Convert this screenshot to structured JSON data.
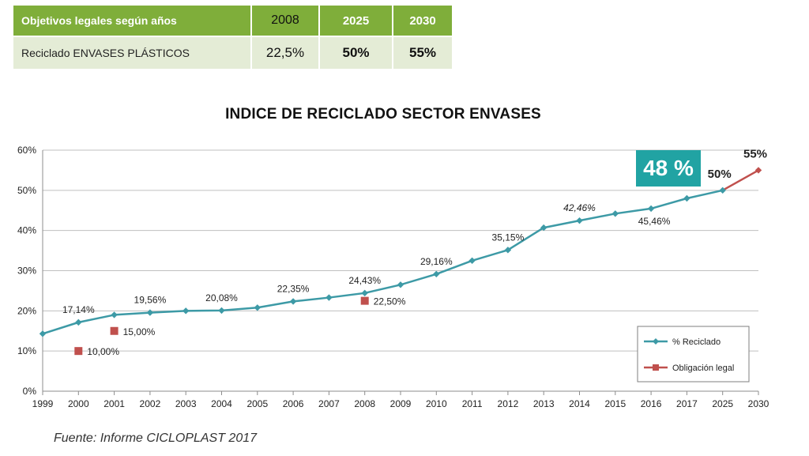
{
  "table": {
    "header_label": "Objetivos legales según años",
    "header_years": [
      "2008",
      "2025",
      "2030"
    ],
    "row_label": "Reciclado ENVASES PLÁSTICOS",
    "row_values": [
      "22,5%",
      "50%",
      "55%"
    ]
  },
  "badge": "48 %",
  "source": "Fuente: Informe CICLOPLAST 2017",
  "chart_data": {
    "type": "line",
    "title": "INDICE DE RECICLADO SECTOR ENVASES",
    "xlabel": "",
    "ylabel": "",
    "categories": [
      "1999",
      "2000",
      "2001",
      "2002",
      "2003",
      "2004",
      "2005",
      "2006",
      "2007",
      "2008",
      "2009",
      "2010",
      "2011",
      "2012",
      "2013",
      "2014",
      "2015",
      "2016",
      "2017",
      "2025",
      "2030"
    ],
    "ylim": [
      0,
      60
    ],
    "yticks": [
      0,
      10,
      20,
      30,
      40,
      50,
      60
    ],
    "ytick_labels": [
      "0%",
      "10%",
      "20%",
      "30%",
      "40%",
      "50%",
      "60%"
    ],
    "grid": true,
    "legend_position": "bottom-right",
    "series": [
      {
        "name": "% Reciclado",
        "color": "#3d9aa6",
        "marker": "diamond",
        "values": [
          14.3,
          17.14,
          19.0,
          19.56,
          20.0,
          20.08,
          20.8,
          22.35,
          23.3,
          24.43,
          26.5,
          29.16,
          32.5,
          35.15,
          40.7,
          42.46,
          44.2,
          45.46,
          48.0,
          50.0,
          null
        ]
      },
      {
        "name": "Obligación legal",
        "color": "#c0504d",
        "marker": "square",
        "points": [
          {
            "x": "2000",
            "y": 10.0
          },
          {
            "x": "2001",
            "y": 15.0
          },
          {
            "x": "2008",
            "y": 22.5
          }
        ],
        "segment": [
          {
            "x": "2025",
            "y": 50.0
          },
          {
            "x": "2030",
            "y": 55.0
          }
        ]
      }
    ],
    "data_labels": [
      {
        "x": "2000",
        "y": 17.14,
        "text": "17,14%",
        "pos": "above",
        "italic": false,
        "bold": false
      },
      {
        "x": "2002",
        "y": 19.56,
        "text": "19,56%",
        "pos": "above",
        "italic": false,
        "bold": false
      },
      {
        "x": "2004",
        "y": 20.08,
        "text": "20,08%",
        "pos": "above",
        "italic": false,
        "bold": false
      },
      {
        "x": "2006",
        "y": 22.35,
        "text": "22,35%",
        "pos": "above",
        "italic": false,
        "bold": false
      },
      {
        "x": "2008",
        "y": 24.43,
        "text": "24,43%",
        "pos": "above",
        "italic": false,
        "bold": false
      },
      {
        "x": "2010",
        "y": 29.16,
        "text": "29,16%",
        "pos": "above",
        "italic": false,
        "bold": false
      },
      {
        "x": "2012",
        "y": 35.15,
        "text": "35,15%",
        "pos": "above",
        "italic": false,
        "bold": false
      },
      {
        "x": "2014",
        "y": 42.46,
        "text": "42,46%",
        "pos": "above",
        "italic": true,
        "bold": false
      },
      {
        "x": "2016",
        "y": 45.46,
        "text": "45,46%",
        "pos": "below",
        "italic": false,
        "bold": false
      },
      {
        "x": "2025",
        "y": 50.0,
        "text": "50%",
        "pos": "above-left",
        "italic": false,
        "bold": true
      },
      {
        "x": "2030",
        "y": 55.0,
        "text": "55%",
        "pos": "above-left",
        "italic": false,
        "bold": true
      },
      {
        "x": "2000",
        "y": 10.0,
        "text": "10,00%",
        "pos": "right",
        "italic": false,
        "bold": false
      },
      {
        "x": "2001",
        "y": 15.0,
        "text": "15,00%",
        "pos": "right",
        "italic": false,
        "bold": false
      },
      {
        "x": "2008",
        "y": 22.5,
        "text": "22,50%",
        "pos": "right",
        "italic": false,
        "bold": false
      }
    ]
  }
}
